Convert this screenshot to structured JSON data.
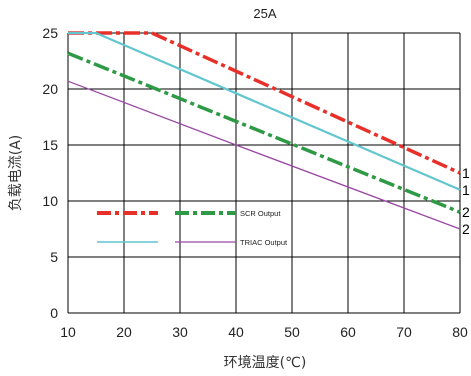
{
  "chart_data": {
    "type": "line",
    "title": "25A",
    "xlabel": "环境温度(℃)",
    "ylabel": "负载电流(A)",
    "xlim": [
      10,
      80
    ],
    "ylim": [
      0,
      25
    ],
    "x_ticks": [
      "10",
      "20",
      "30",
      "40",
      "50",
      "60",
      "70",
      "80"
    ],
    "y_ticks": [
      "0",
      "5",
      "10",
      "15",
      "20",
      "25"
    ],
    "grid": true,
    "legend": [
      "SCR Output",
      "TRIAC Output"
    ],
    "series": [
      {
        "color": "#e8302a",
        "style": "dash-dot-thick",
        "points": [
          [
            10,
            25
          ],
          [
            25,
            25
          ],
          [
            80,
            12.5
          ]
        ]
      },
      {
        "color": "#62c6cf",
        "style": "solid",
        "points": [
          [
            10,
            25
          ],
          [
            15,
            25
          ],
          [
            80,
            11
          ]
        ]
      },
      {
        "color": "#2f9a45",
        "style": "dash-dot-thick",
        "points": [
          [
            10,
            23.2
          ],
          [
            80,
            9
          ]
        ]
      },
      {
        "color": "#9a4aa4",
        "style": "solid-thin",
        "points": [
          [
            10,
            20.7
          ],
          [
            40,
            15
          ],
          [
            80,
            7.5
          ]
        ]
      }
    ],
    "end_labels": [
      "1",
      "1",
      "2",
      "2"
    ]
  }
}
